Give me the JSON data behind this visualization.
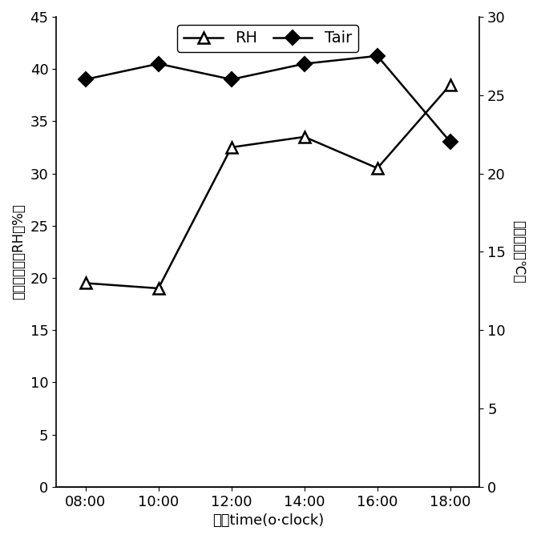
{
  "x_labels": [
    "08:00",
    "10:00",
    "12:00",
    "14:00",
    "16:00",
    "18:00"
  ],
  "x_values": [
    8,
    10,
    12,
    14,
    16,
    18
  ],
  "RH_values": [
    19.5,
    19.0,
    32.5,
    33.5,
    30.5,
    38.5
  ],
  "Tair_values": [
    26.0,
    27.0,
    26.0,
    27.0,
    27.5,
    22.0
  ],
  "left_ylim": [
    0,
    45
  ],
  "left_yticks": [
    0,
    5,
    10,
    15,
    20,
    25,
    30,
    35,
    40,
    45
  ],
  "right_ylim": [
    0,
    30
  ],
  "right_yticks": [
    0,
    5,
    10,
    15,
    20,
    25,
    30
  ],
  "left_ylabel": "空气相对湿度RH（%）",
  "right_ylabel": "空气温度（℃）",
  "xlabel": "时间time(o·clock)",
  "legend_RH": "RH",
  "legend_Tair": "Tair",
  "line_color": "#000000",
  "bg_color": "#ffffff"
}
